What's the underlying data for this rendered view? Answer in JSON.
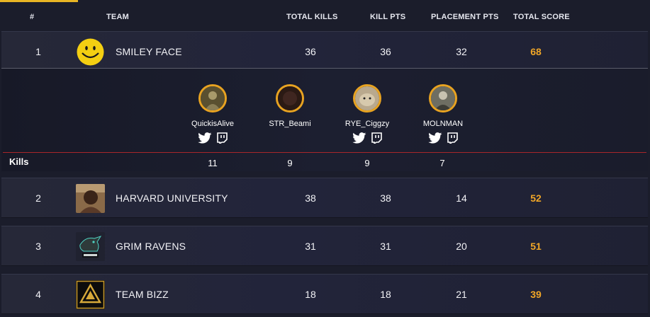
{
  "header": {
    "rank": "#",
    "team": "TEAM",
    "total_kills": "TOTAL KILLS",
    "kill_pts": "KILL PTS",
    "placement_pts": "PLACEMENT PTS",
    "total_score": "TOTAL SCORE"
  },
  "colors": {
    "accent": "#e8b524",
    "score": "#f0a627",
    "divider": "#a8262a"
  },
  "teams": [
    {
      "rank": "1",
      "name": "SMILEY FACE",
      "kills": "36",
      "kill_pts": "36",
      "placement_pts": "32",
      "total": "68",
      "logo": "smiley-face-logo"
    },
    {
      "rank": "2",
      "name": "HARVARD UNIVERSITY",
      "kills": "38",
      "kill_pts": "38",
      "placement_pts": "14",
      "total": "52",
      "logo": "portrait-photo"
    },
    {
      "rank": "3",
      "name": "GRIM RAVENS",
      "kills": "31",
      "kill_pts": "31",
      "placement_pts": "20",
      "total": "51",
      "logo": "raven-logo"
    },
    {
      "rank": "4",
      "name": "TEAM BIZZ",
      "kills": "18",
      "kill_pts": "18",
      "placement_pts": "21",
      "total": "39",
      "logo": "triangle-logo"
    }
  ],
  "expanded": {
    "kills_label": "Kills",
    "players": [
      {
        "name": "QuickisAlive",
        "kills": "11",
        "socials": [
          "twitter-icon",
          "twitch-icon"
        ]
      },
      {
        "name": "STR_Beami",
        "kills": "9",
        "socials": []
      },
      {
        "name": "RYE_Ciggzy",
        "kills": "9",
        "socials": [
          "twitter-icon",
          "twitch-icon"
        ]
      },
      {
        "name": "MOLNMAN",
        "kills": "7",
        "socials": [
          "twitter-icon",
          "twitch-icon"
        ]
      }
    ]
  }
}
